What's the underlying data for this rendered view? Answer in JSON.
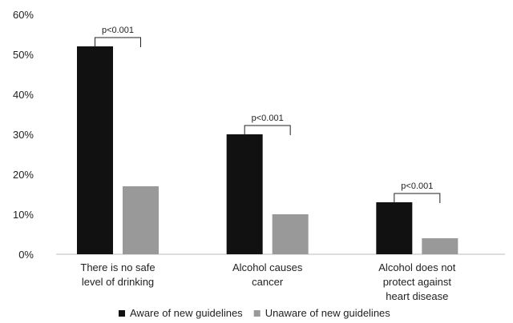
{
  "chart_data": {
    "type": "bar",
    "categories": [
      [
        "There is no safe",
        "level of drinking"
      ],
      [
        "Alcohol causes",
        "cancer"
      ],
      [
        "Alcohol does not",
        "protect against",
        "heart disease"
      ]
    ],
    "series": [
      {
        "name": "Aware of new guidelines",
        "values": [
          52,
          30,
          13
        ],
        "color": "#111111"
      },
      {
        "name": "Unaware of new guidelines",
        "values": [
          17,
          10,
          4
        ],
        "color": "#999999"
      }
    ],
    "ylim": [
      0,
      60
    ],
    "yticks": [
      "0%",
      "10%",
      "20%",
      "30%",
      "40%",
      "50%",
      "60%"
    ],
    "annotations": [
      "p<0.001",
      "p<0.001",
      "p<0.001"
    ],
    "grid": false,
    "legend": "bottom"
  }
}
